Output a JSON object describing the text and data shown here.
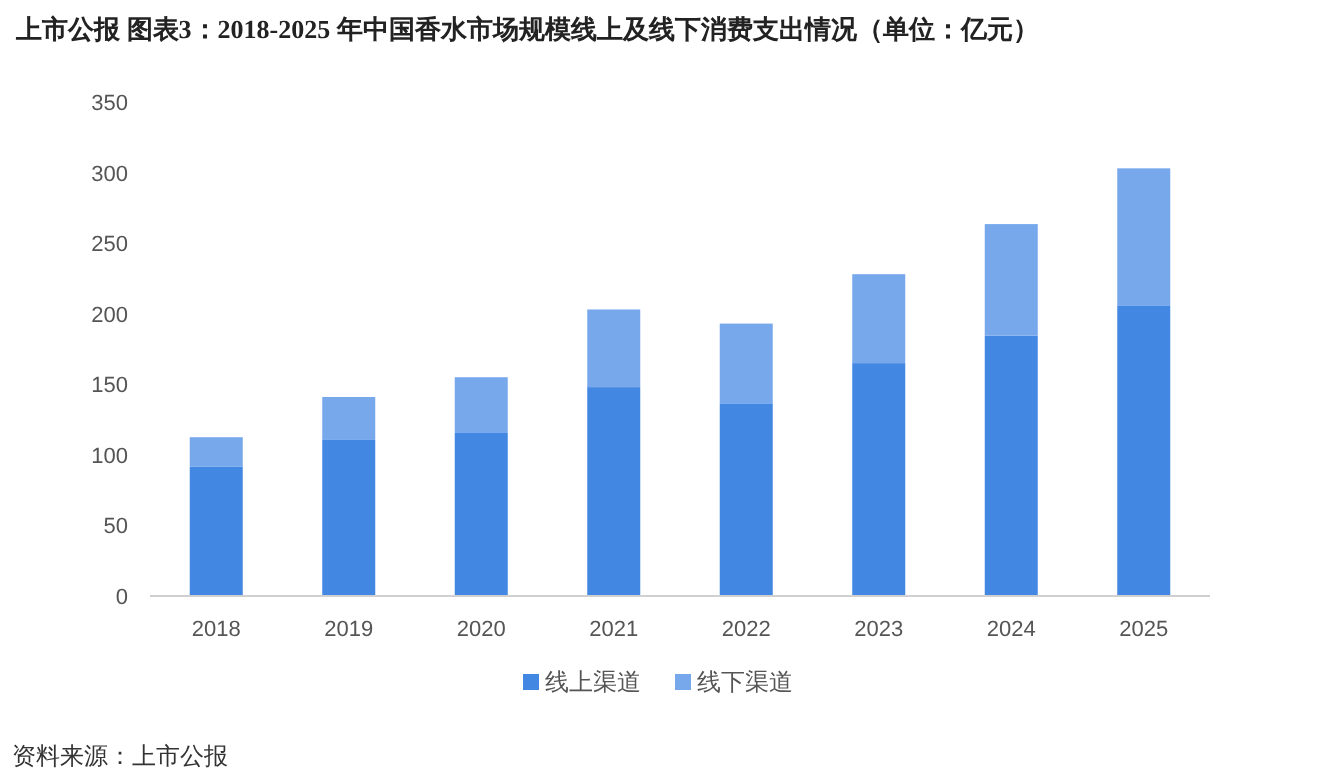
{
  "chart_data": {
    "type": "bar",
    "title": "上市公报 图表3：2018-2025 年中国香水市场规模线上及线下消费支出情况（单位：亿元）",
    "categories": [
      "2018",
      "2019",
      "2020",
      "2021",
      "2022",
      "2023",
      "2024",
      "2025"
    ],
    "series": [
      {
        "name": "线上渠道",
        "color": "#4287e2",
        "values": [
          91.5,
          111,
          115.5,
          148,
          136.5,
          165,
          184.5,
          205.5
        ]
      },
      {
        "name": "线下渠道",
        "color": "#77a8ec",
        "values": [
          21,
          30,
          39.5,
          55,
          56.5,
          63,
          79,
          97.5
        ]
      }
    ],
    "stacked": true,
    "ylim": [
      0,
      350
    ],
    "yticks": [
      0,
      50,
      100,
      150,
      200,
      250,
      300,
      350
    ],
    "grid": false,
    "legend": "bottom",
    "annotations": [
      "资料来源：上市公报"
    ]
  }
}
